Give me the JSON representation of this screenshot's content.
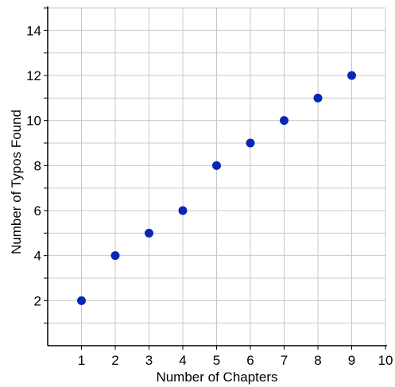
{
  "chart_data": {
    "type": "scatter",
    "xlabel": "Number of Chapters",
    "ylabel": "Number of Typos Found",
    "xlim": [
      0,
      10
    ],
    "ylim": [
      0,
      15
    ],
    "x_ticks": [
      1,
      2,
      3,
      4,
      5,
      6,
      7,
      8,
      9,
      10
    ],
    "y_ticks": [
      2,
      4,
      6,
      8,
      10,
      12,
      14
    ],
    "grid": true,
    "x_grid_step": 1,
    "y_grid_step": 1,
    "series": [
      {
        "x": [
          1,
          2,
          3,
          4,
          5,
          6,
          7,
          8,
          9
        ],
        "y": [
          2,
          4,
          5,
          6,
          8,
          9,
          10,
          11,
          12
        ],
        "color": "#0a26b4"
      }
    ]
  }
}
